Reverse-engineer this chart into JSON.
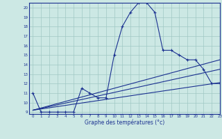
{
  "xlabel": "Graphe des températures (°c)",
  "background_color": "#cce8e4",
  "line_color": "#1a3090",
  "grid_color": "#a0c8c4",
  "hours": [
    0,
    1,
    2,
    3,
    4,
    5,
    6,
    7,
    8,
    9,
    10,
    11,
    12,
    13,
    14,
    15,
    16,
    17,
    18,
    19,
    20,
    21,
    22,
    23
  ],
  "temps": [
    11,
    9,
    9,
    9,
    9,
    9,
    11.5,
    11,
    10.5,
    10.5,
    15,
    18,
    19.5,
    20.5,
    20.5,
    19.5,
    15.5,
    15.5,
    15,
    14.5,
    14.5,
    13.5,
    12,
    12
  ],
  "line2_x": [
    0,
    23
  ],
  "line2_y": [
    9.2,
    12.1
  ],
  "line3_x": [
    0,
    23
  ],
  "line3_y": [
    9.2,
    13.5
  ],
  "line4_x": [
    0,
    23
  ],
  "line4_y": [
    9.2,
    14.5
  ],
  "ylim": [
    8.8,
    20.5
  ],
  "xlim": [
    -0.5,
    23
  ],
  "yticks": [
    9,
    10,
    11,
    12,
    13,
    14,
    15,
    16,
    17,
    18,
    19,
    20
  ],
  "xticks": [
    0,
    1,
    2,
    3,
    4,
    5,
    6,
    7,
    8,
    9,
    10,
    11,
    12,
    13,
    14,
    15,
    16,
    17,
    18,
    19,
    20,
    21,
    22,
    23
  ]
}
